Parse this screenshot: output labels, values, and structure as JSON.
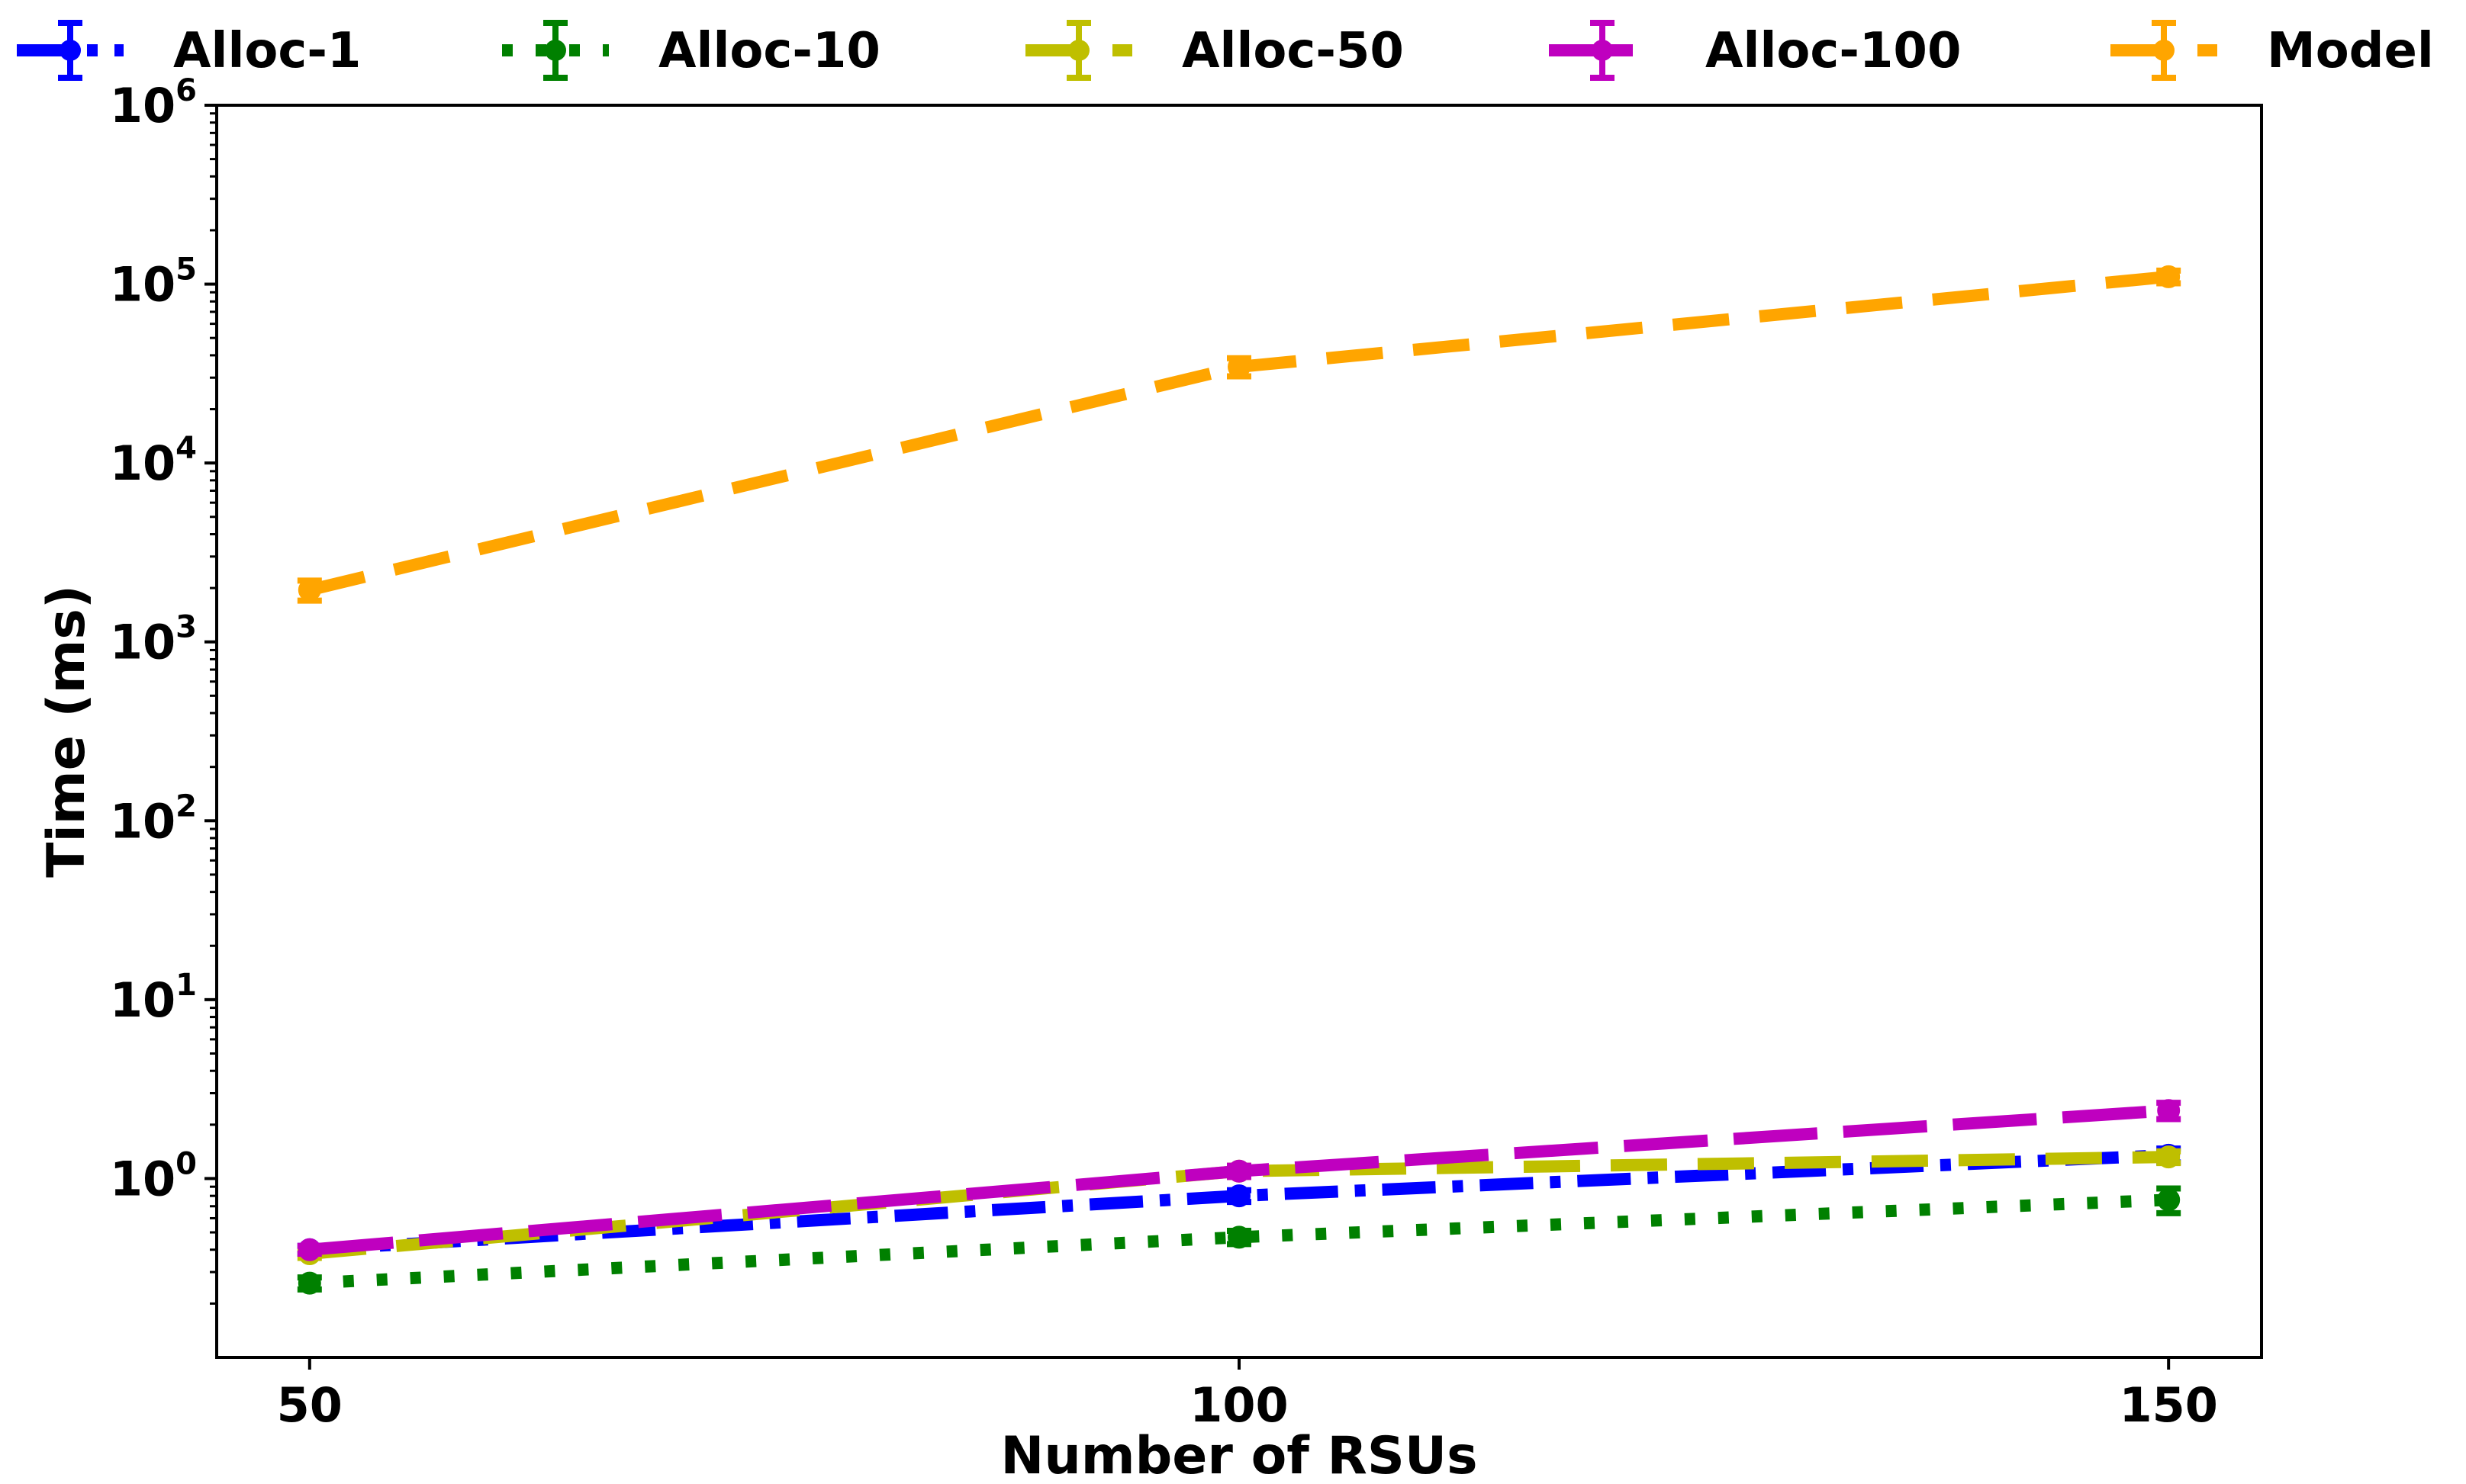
{
  "chart_data": {
    "type": "line",
    "title": "",
    "xlabel": "Number of RSUs",
    "ylabel": "Time (ms)",
    "yscale": "log",
    "x": [
      50,
      100,
      150
    ],
    "xticks": [
      50,
      100,
      150
    ],
    "xtick_labels": [
      "50",
      "100",
      "150"
    ],
    "xlim": [
      45,
      155
    ],
    "ylim": [
      0.1,
      1000000
    ],
    "yticks": [
      {
        "value": 1,
        "base": "10",
        "exp": "0"
      },
      {
        "value": 10,
        "base": "10",
        "exp": "1"
      },
      {
        "value": 100,
        "base": "10",
        "exp": "2"
      },
      {
        "value": 1000,
        "base": "10",
        "exp": "3"
      },
      {
        "value": 10000,
        "base": "10",
        "exp": "4"
      },
      {
        "value": 100000,
        "base": "10",
        "exp": "5"
      },
      {
        "value": 1000000,
        "base": "10",
        "exp": "6"
      }
    ],
    "legend_position": "top, outside plot",
    "series": [
      {
        "name": "Alloc-1",
        "color": "#0000ff",
        "style": "dashdot",
        "marker": "circle",
        "values": [
          0.4,
          0.8,
          1.35
        ],
        "errors": [
          0.02,
          0.06,
          0.12
        ]
      },
      {
        "name": "Alloc-10",
        "color": "#008000",
        "style": "dotted",
        "marker": "circle",
        "values": [
          0.26,
          0.47,
          0.76
        ],
        "errors": [
          0.02,
          0.04,
          0.12
        ]
      },
      {
        "name": "Alloc-50",
        "color": "#bfbf00",
        "style": "dashed",
        "marker": "circle",
        "values": [
          0.38,
          1.1,
          1.32
        ],
        "errors": [
          0.02,
          0.08,
          0.1
        ]
      },
      {
        "name": "Alloc-100",
        "color": "#bf00bf",
        "style": "longdash",
        "marker": "circle",
        "values": [
          0.4,
          1.1,
          2.4
        ],
        "errors": [
          0.02,
          0.08,
          0.25
        ]
      },
      {
        "name": "Model",
        "color": "#ffa500",
        "style": "dashed",
        "marker": "circle",
        "values": [
          1950,
          34500,
          110000
        ],
        "errors": [
          250,
          4000,
          9000
        ]
      }
    ]
  }
}
